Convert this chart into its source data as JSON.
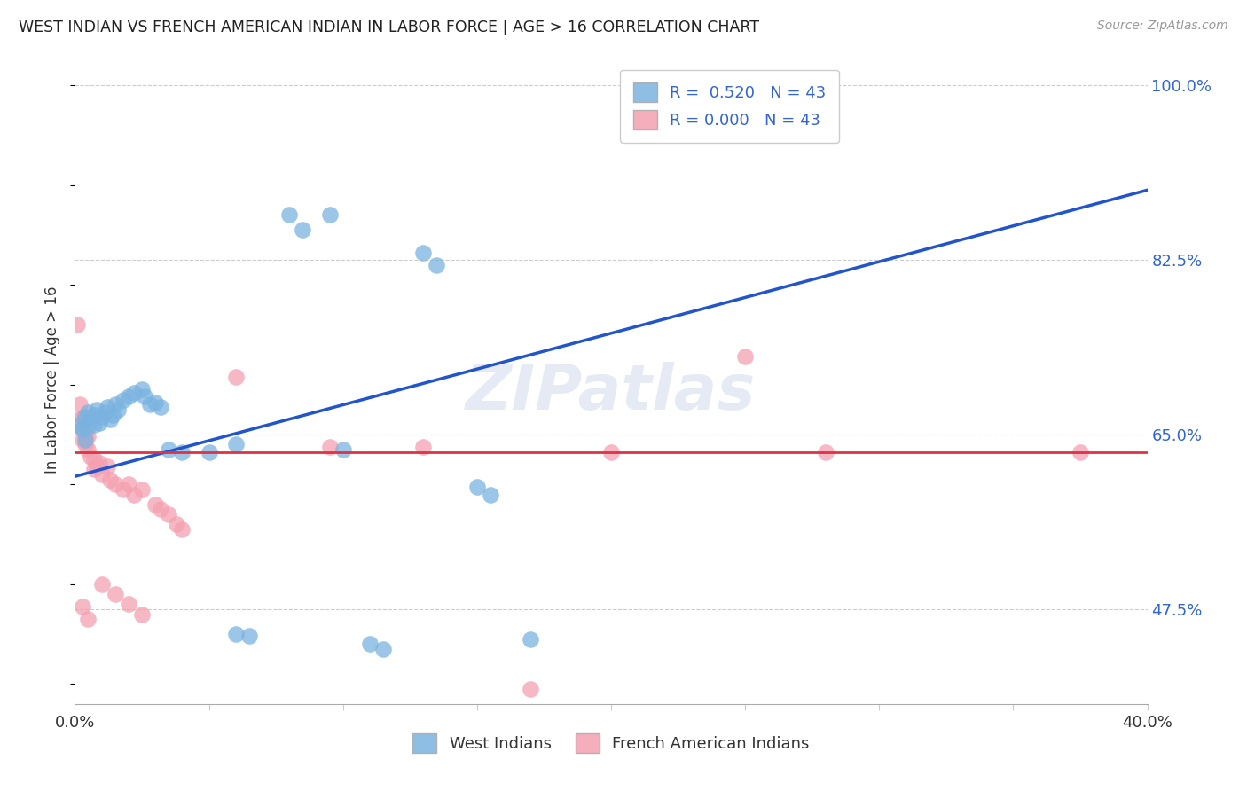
{
  "title": "WEST INDIAN VS FRENCH AMERICAN INDIAN IN LABOR FORCE | AGE > 16 CORRELATION CHART",
  "source": "Source: ZipAtlas.com",
  "ylabel": "In Labor Force | Age > 16",
  "xlim": [
    0.0,
    0.4
  ],
  "ylim": [
    0.38,
    1.03
  ],
  "blue_R": 0.52,
  "pink_R": 0.0,
  "N": 43,
  "blue_line_x": [
    0.0,
    0.4
  ],
  "blue_line_y": [
    0.608,
    0.895
  ],
  "pink_line_y": 0.632,
  "watermark": "ZIPatlas",
  "blue_dots": [
    [
      0.002,
      0.66
    ],
    [
      0.003,
      0.655
    ],
    [
      0.004,
      0.668
    ],
    [
      0.004,
      0.645
    ],
    [
      0.005,
      0.672
    ],
    [
      0.005,
      0.658
    ],
    [
      0.006,
      0.665
    ],
    [
      0.007,
      0.67
    ],
    [
      0.007,
      0.66
    ],
    [
      0.008,
      0.675
    ],
    [
      0.009,
      0.662
    ],
    [
      0.01,
      0.668
    ],
    [
      0.011,
      0.672
    ],
    [
      0.012,
      0.678
    ],
    [
      0.013,
      0.665
    ],
    [
      0.014,
      0.67
    ],
    [
      0.015,
      0.68
    ],
    [
      0.016,
      0.675
    ],
    [
      0.018,
      0.685
    ],
    [
      0.02,
      0.688
    ],
    [
      0.022,
      0.692
    ],
    [
      0.025,
      0.695
    ],
    [
      0.026,
      0.688
    ],
    [
      0.028,
      0.68
    ],
    [
      0.03,
      0.682
    ],
    [
      0.032,
      0.678
    ],
    [
      0.035,
      0.635
    ],
    [
      0.04,
      0.632
    ],
    [
      0.05,
      0.632
    ],
    [
      0.06,
      0.64
    ],
    [
      0.1,
      0.635
    ],
    [
      0.13,
      0.832
    ],
    [
      0.135,
      0.82
    ],
    [
      0.15,
      0.598
    ],
    [
      0.155,
      0.59
    ],
    [
      0.11,
      0.44
    ],
    [
      0.115,
      0.435
    ],
    [
      0.08,
      0.87
    ],
    [
      0.085,
      0.855
    ],
    [
      0.095,
      0.87
    ],
    [
      0.17,
      0.445
    ],
    [
      0.06,
      0.45
    ],
    [
      0.065,
      0.448
    ]
  ],
  "pink_dots": [
    [
      0.001,
      0.76
    ],
    [
      0.002,
      0.665
    ],
    [
      0.002,
      0.68
    ],
    [
      0.003,
      0.655
    ],
    [
      0.003,
      0.668
    ],
    [
      0.003,
      0.645
    ],
    [
      0.004,
      0.66
    ],
    [
      0.004,
      0.65
    ],
    [
      0.004,
      0.64
    ],
    [
      0.005,
      0.648
    ],
    [
      0.005,
      0.635
    ],
    [
      0.006,
      0.628
    ],
    [
      0.007,
      0.625
    ],
    [
      0.007,
      0.615
    ],
    [
      0.008,
      0.618
    ],
    [
      0.009,
      0.622
    ],
    [
      0.01,
      0.61
    ],
    [
      0.012,
      0.618
    ],
    [
      0.013,
      0.605
    ],
    [
      0.015,
      0.6
    ],
    [
      0.018,
      0.595
    ],
    [
      0.02,
      0.6
    ],
    [
      0.022,
      0.59
    ],
    [
      0.025,
      0.595
    ],
    [
      0.03,
      0.58
    ],
    [
      0.032,
      0.575
    ],
    [
      0.035,
      0.57
    ],
    [
      0.038,
      0.56
    ],
    [
      0.04,
      0.555
    ],
    [
      0.01,
      0.5
    ],
    [
      0.015,
      0.49
    ],
    [
      0.02,
      0.48
    ],
    [
      0.025,
      0.47
    ],
    [
      0.003,
      0.478
    ],
    [
      0.005,
      0.465
    ],
    [
      0.06,
      0.708
    ],
    [
      0.095,
      0.638
    ],
    [
      0.13,
      0.638
    ],
    [
      0.17,
      0.395
    ],
    [
      0.2,
      0.632
    ],
    [
      0.28,
      0.632
    ],
    [
      0.375,
      0.632
    ],
    [
      0.25,
      0.728
    ]
  ],
  "background_color": "#ffffff",
  "blue_color": "#7ab3e0",
  "pink_color": "#f4a0b0",
  "blue_line_color": "#2255cc",
  "pink_line_color": "#dd3344",
  "grid_color": "#cccccc",
  "title_color": "#222222",
  "axis_label_color": "#333333",
  "right_tick_color": "#3366cc",
  "source_color": "#999999"
}
